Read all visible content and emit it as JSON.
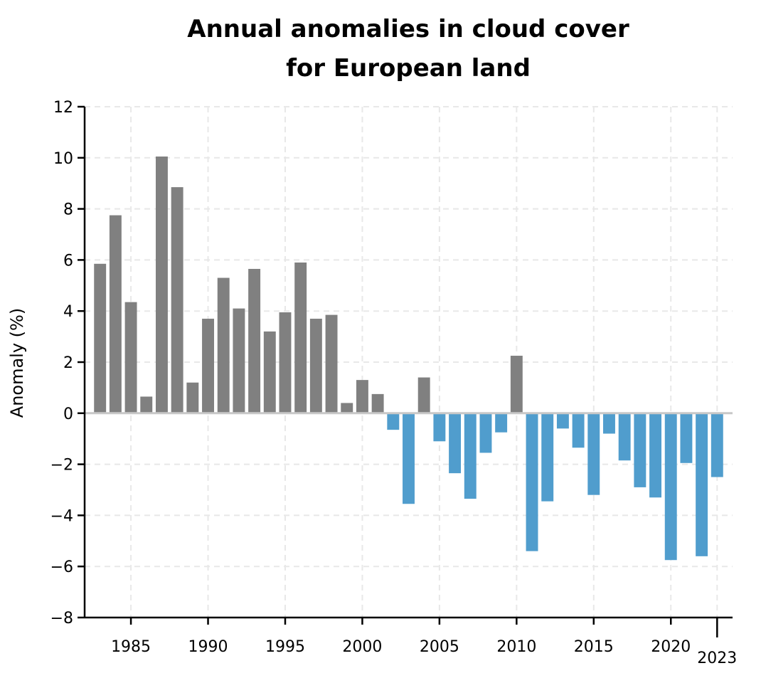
{
  "chart_data": {
    "type": "bar",
    "title_lines": [
      "Annual anomalies in cloud cover",
      "for European land"
    ],
    "xlabel": "",
    "ylabel": "Anomaly (%)",
    "ylim": [
      -8,
      12
    ],
    "xlim": [
      1982,
      2024
    ],
    "yticks": [
      -8,
      -6,
      -4,
      -2,
      0,
      2,
      4,
      6,
      8,
      10,
      12
    ],
    "ytick_labels": [
      "−8",
      "−6",
      "−4",
      "−2",
      "0",
      "2",
      "4",
      "6",
      "8",
      "10",
      "12"
    ],
    "xticks": [
      1985,
      1990,
      1995,
      2000,
      2005,
      2010,
      2015,
      2020
    ],
    "xtick_labels": [
      "1985",
      "1990",
      "1995",
      "2000",
      "2005",
      "2010",
      "2015",
      "2020"
    ],
    "highlight_tick": {
      "value": 2023,
      "label": "2023"
    },
    "grid": true,
    "colors": {
      "positive": "#808080",
      "negative": "#509dcd",
      "zero_line": "#c8c8c8",
      "grid": "#e8e8e8"
    },
    "categories": [
      1983,
      1984,
      1985,
      1986,
      1987,
      1988,
      1989,
      1990,
      1991,
      1992,
      1993,
      1994,
      1995,
      1996,
      1997,
      1998,
      1999,
      2000,
      2001,
      2002,
      2003,
      2004,
      2005,
      2006,
      2007,
      2008,
      2009,
      2010,
      2011,
      2012,
      2013,
      2014,
      2015,
      2016,
      2017,
      2018,
      2019,
      2020,
      2021,
      2022,
      2023
    ],
    "values": [
      5.85,
      7.75,
      4.35,
      0.65,
      10.05,
      8.85,
      1.2,
      3.7,
      5.3,
      4.1,
      5.65,
      3.2,
      3.95,
      5.9,
      3.7,
      3.85,
      0.4,
      1.3,
      0.75,
      -0.65,
      -3.55,
      1.4,
      -1.1,
      -2.35,
      -3.35,
      -1.55,
      -0.75,
      2.25,
      -5.4,
      -3.45,
      -0.6,
      -1.35,
      -3.2,
      -0.8,
      -1.85,
      -2.9,
      -3.3,
      -5.75,
      -1.95,
      -5.6,
      -2.5
    ]
  }
}
